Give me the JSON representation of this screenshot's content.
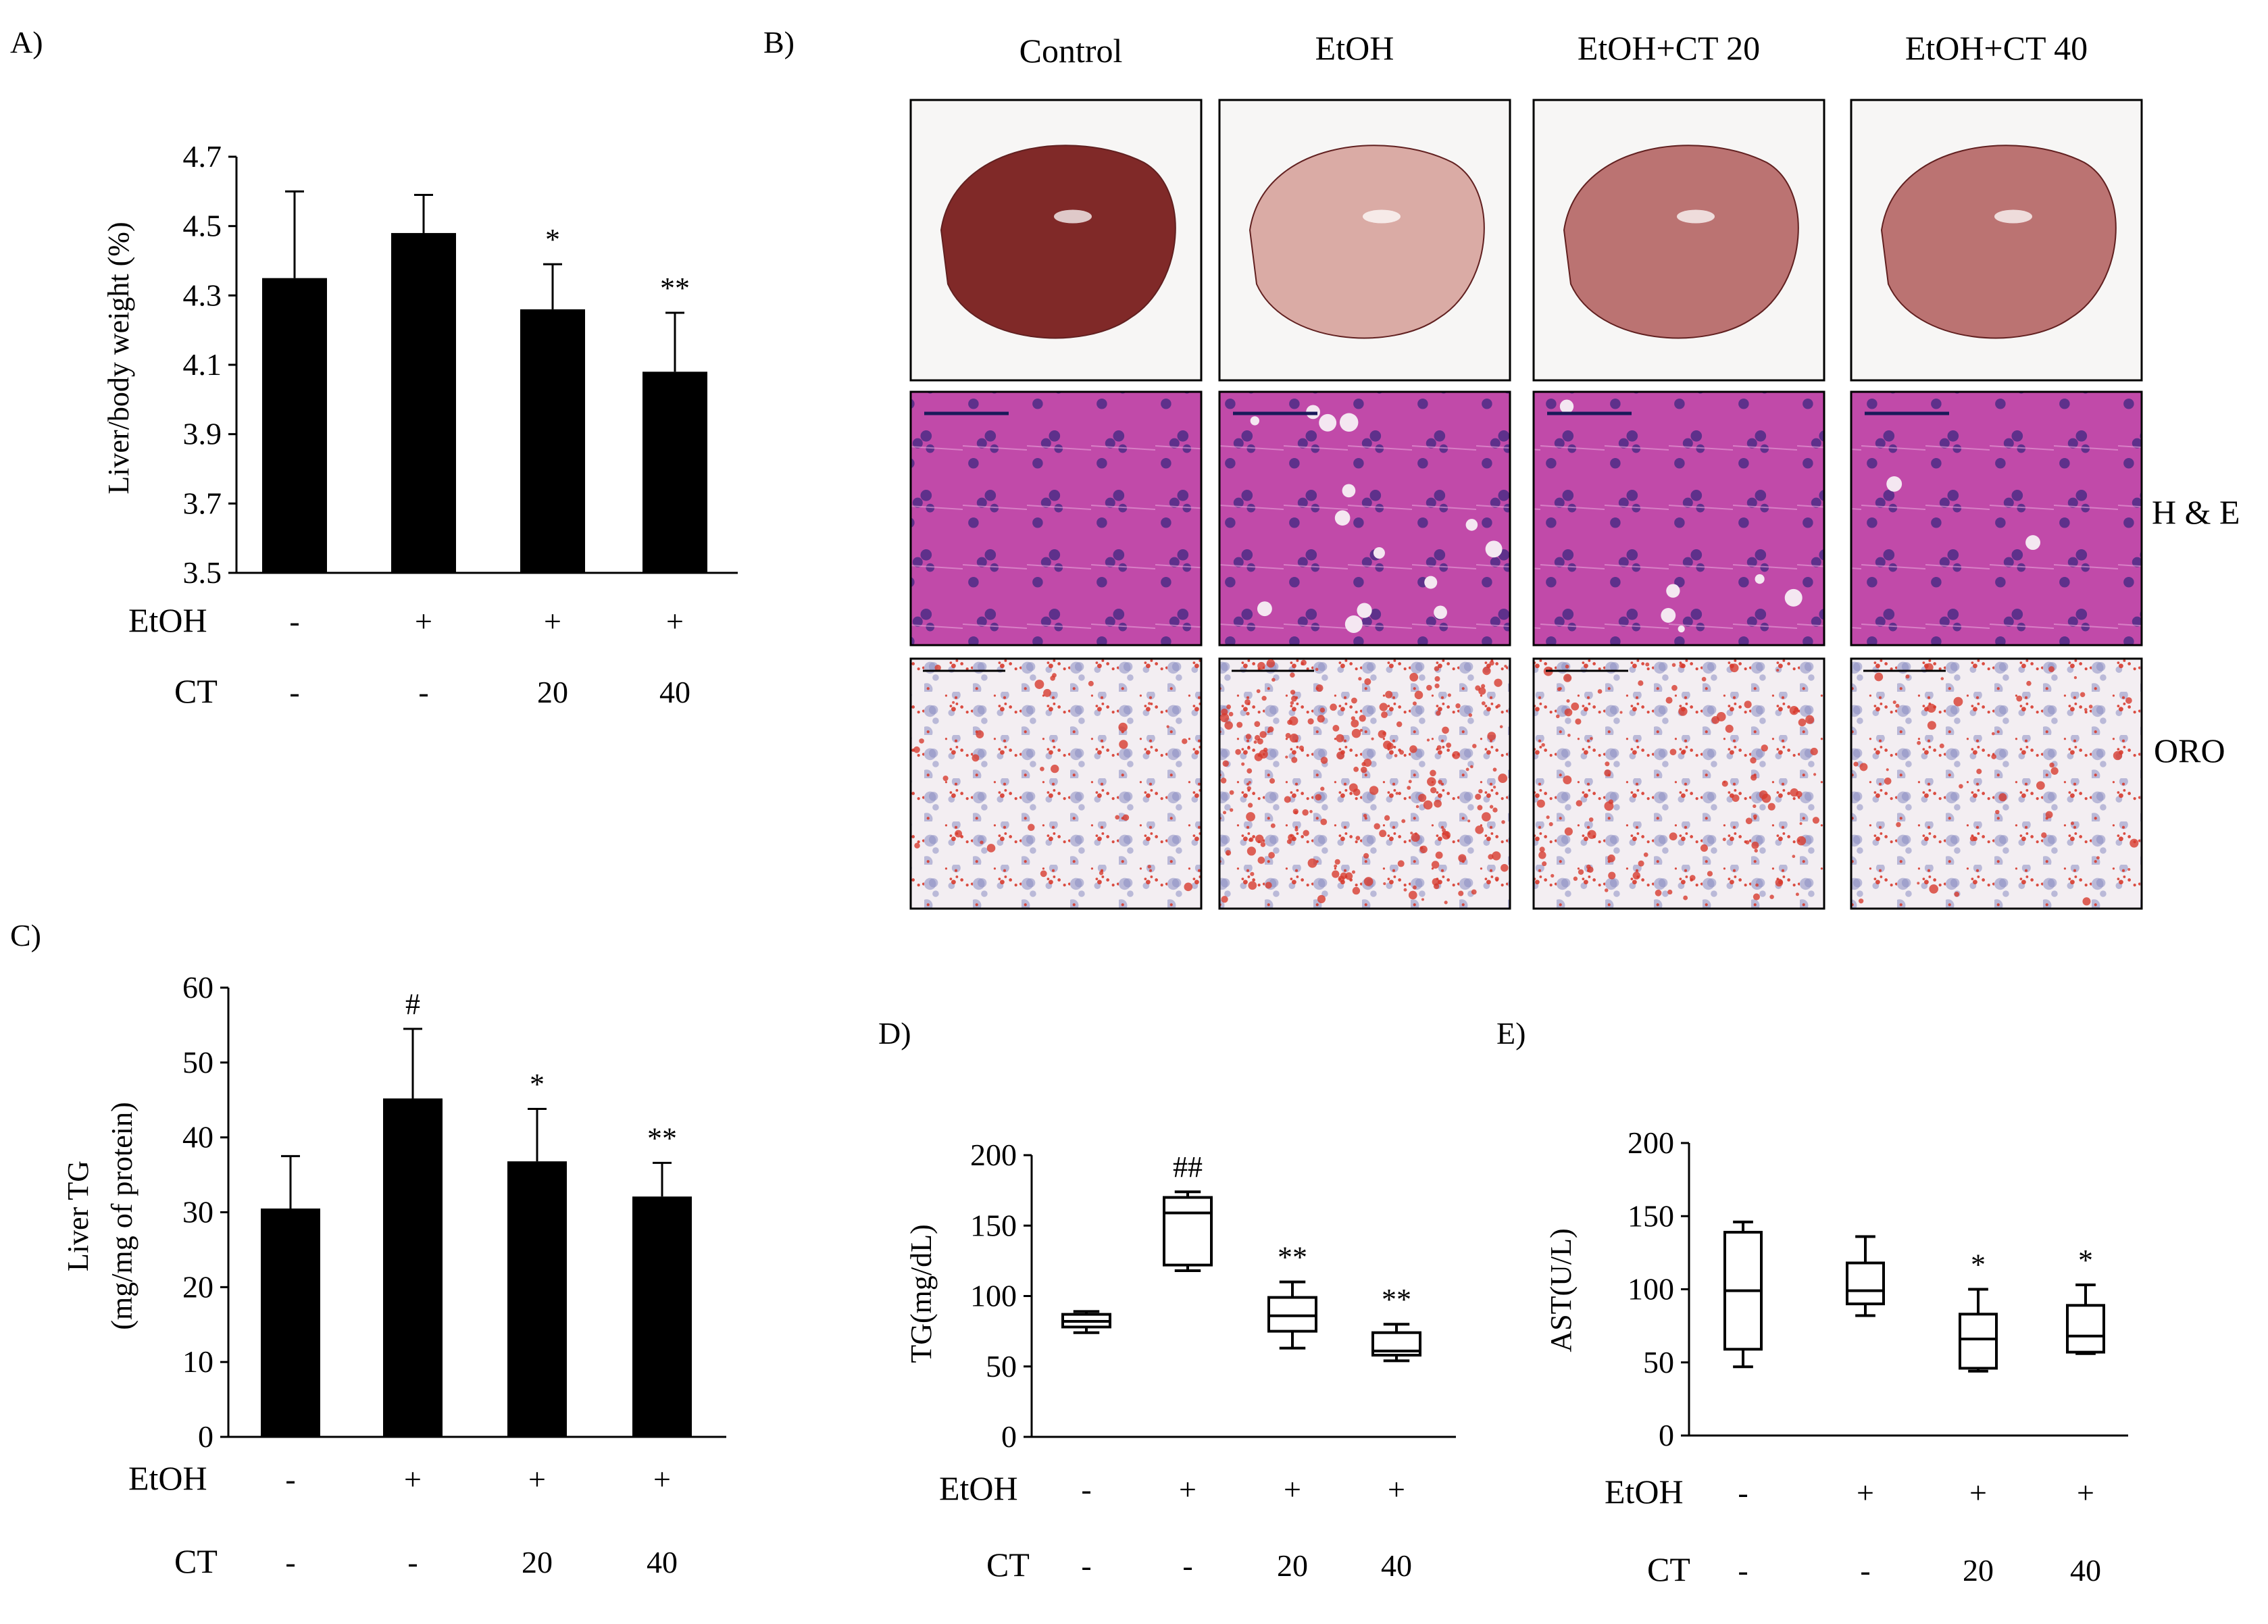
{
  "figure": {
    "panel_labels": [
      "A)",
      "B)",
      "C)",
      "D)",
      "E)"
    ],
    "micrograph_panel": {
      "columns": [
        "Control",
        "EtOH",
        "EtOH+CT 20",
        "EtOH+CT 40"
      ],
      "rows": [
        "",
        "H & E",
        "ORO"
      ],
      "colors": {
        "liver_dark": "#7a1f1e",
        "liver_mid": "#b86d6b",
        "liver_pale": "#d9a8a1",
        "he_bg": "#c14aa9",
        "he_nuclei": "#4d2c86",
        "oro_bg": "#f3eef2",
        "oro_lipid": "#d73b2e",
        "oro_nuclei": "#8b8ec2"
      }
    },
    "condition_labels": [
      "EtOH",
      "CT"
    ]
  },
  "chart_data": [
    {
      "panel": "A)",
      "type": "bar",
      "categories": [
        "1",
        "2",
        "3",
        "4"
      ],
      "values": [
        4.35,
        4.48,
        4.26,
        4.08
      ],
      "errors": [
        0.25,
        0.11,
        0.13,
        0.17
      ],
      "significance": [
        "",
        "",
        "*",
        "**"
      ],
      "ylabel": "Liver/body  weight  (%)",
      "ylim": [
        3.5,
        4.7
      ],
      "yticks": [
        "3.5",
        "3.7",
        "3.9",
        "4.1",
        "4.3",
        "4.5",
        "4.7"
      ],
      "conditions": {
        "EtOH": [
          "-",
          "+",
          "+",
          "+"
        ],
        "CT": [
          "-",
          "-",
          "20",
          "40"
        ]
      }
    },
    {
      "panel": "C)",
      "type": "bar",
      "categories": [
        "1",
        "2",
        "3",
        "4"
      ],
      "values": [
        30.5,
        45.2,
        36.8,
        32.1
      ],
      "errors": [
        7.0,
        9.3,
        7.0,
        4.5
      ],
      "significance": [
        "",
        "#",
        "*",
        "**"
      ],
      "ylabel": [
        "Liver  TG",
        "(mg/mg  of protein)"
      ],
      "ylim": [
        0,
        60
      ],
      "yticks": [
        "0",
        "10",
        "20",
        "30",
        "40",
        "50",
        "60"
      ],
      "conditions": {
        "EtOH": [
          "-",
          "+",
          "+",
          "+"
        ],
        "CT": [
          "-",
          "-",
          "20",
          "40"
        ]
      }
    },
    {
      "panel": "D)",
      "type": "box",
      "categories": [
        "1",
        "2",
        "3",
        "4"
      ],
      "boxes": [
        {
          "min": 74,
          "q1": 78,
          "median": 82,
          "q3": 87,
          "max": 89
        },
        {
          "min": 118,
          "q1": 122,
          "median": 159,
          "q3": 170,
          "max": 174
        },
        {
          "min": 63,
          "q1": 75,
          "median": 86,
          "q3": 99,
          "max": 110
        },
        {
          "min": 54,
          "q1": 58,
          "median": 61,
          "q3": 74,
          "max": 80
        }
      ],
      "significance": [
        "",
        "##",
        "**",
        "**"
      ],
      "ylabel": "TG(mg/dL)",
      "ylim": [
        0,
        200
      ],
      "yticks": [
        "0",
        "50",
        "100",
        "150",
        "200"
      ],
      "conditions": {
        "EtOH": [
          "-",
          "+",
          "+",
          "+"
        ],
        "CT": [
          "-",
          "-",
          "20",
          "40"
        ]
      }
    },
    {
      "panel": "E)",
      "type": "box",
      "categories": [
        "1",
        "2",
        "3",
        "4"
      ],
      "boxes": [
        {
          "min": 47,
          "q1": 59,
          "median": 99,
          "q3": 139,
          "max": 146
        },
        {
          "min": 82,
          "q1": 90,
          "median": 99,
          "q3": 118,
          "max": 136
        },
        {
          "min": 44,
          "q1": 46,
          "median": 66,
          "q3": 83,
          "max": 100
        },
        {
          "min": 56,
          "q1": 57,
          "median": 68,
          "q3": 89,
          "max": 103
        }
      ],
      "significance": [
        "",
        "",
        "*",
        "*"
      ],
      "ylabel": "AST(U/L)",
      "ylim": [
        0,
        200
      ],
      "yticks": [
        "0",
        "50",
        "100",
        "150",
        "200"
      ],
      "conditions": {
        "EtOH": [
          "-",
          "+",
          "+",
          "+"
        ],
        "CT": [
          "-",
          "-",
          "20",
          "40"
        ]
      }
    }
  ]
}
